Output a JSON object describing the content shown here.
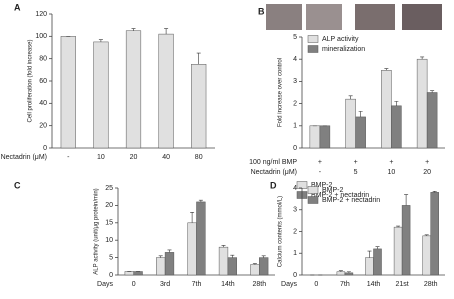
{
  "chart_data": [
    {
      "type": "bar",
      "label": "A",
      "ylabel": "Cell proliferation (fold increase)",
      "x_label": "Nectadrin (μM)",
      "categories": [
        "-",
        "10",
        "20",
        "40",
        "80"
      ],
      "series": [
        {
          "color": "#e0e0e0",
          "values": [
            100,
            95,
            105,
            102,
            75
          ],
          "errors": [
            0,
            2,
            2,
            5,
            10
          ]
        }
      ],
      "ylim": [
        0,
        120
      ],
      "yticks": [
        0,
        20,
        40,
        60,
        80,
        100,
        120
      ]
    },
    {
      "type": "bar",
      "label": "B",
      "ylabel": "Fold increase over control",
      "x_label": "Nectadrin (μM)",
      "treatment": {
        "label": "100 ng/ml BMP",
        "values": [
          "+",
          "+",
          "+",
          "+"
        ]
      },
      "categories": [
        "-",
        "5",
        "10",
        "20"
      ],
      "series": [
        {
          "name": "ALP activity",
          "color": "#e0e0e0",
          "values": [
            1,
            2.2,
            3.5,
            4.0
          ],
          "errors": [
            0,
            0.15,
            0.08,
            0.1
          ]
        },
        {
          "name": "mineralization",
          "color": "#808080",
          "values": [
            1,
            1.4,
            1.9,
            2.5
          ],
          "errors": [
            0,
            0.25,
            0.2,
            0.08
          ]
        }
      ],
      "ylim": [
        0,
        5
      ],
      "yticks": [
        0,
        1,
        2,
        3,
        4,
        5
      ],
      "legend": "upper left"
    },
    {
      "type": "bar",
      "label": "C",
      "ylabel": "ALP activity (unit/μg protein/min)",
      "x_label": "Days",
      "categories": [
        "0",
        "3rd",
        "7th",
        "14th",
        "28th"
      ],
      "series": [
        {
          "name": "BMP-2",
          "color": "#e0e0e0",
          "values": [
            1,
            5,
            15,
            8,
            3
          ],
          "errors": [
            0,
            0.5,
            3,
            0.5,
            0.3
          ]
        },
        {
          "name": "BMP-2 + nectadrin",
          "color": "#808080",
          "values": [
            1,
            6.5,
            21,
            5,
            5
          ],
          "errors": [
            0,
            0.7,
            0.5,
            0.7,
            0.5
          ]
        }
      ],
      "ylim": [
        0,
        25
      ],
      "yticks": [
        0,
        5,
        10,
        15,
        20,
        25
      ],
      "legend": "right"
    },
    {
      "type": "bar",
      "label": "D",
      "ylabel": "Calcium contents (mmol/L)",
      "x_label": "Days",
      "categories": [
        "0",
        "7th",
        "14th",
        "21st",
        "28th"
      ],
      "series": [
        {
          "name": "BMP-2",
          "color": "#e0e0e0",
          "values": [
            0,
            0.15,
            0.8,
            2.2,
            1.8
          ],
          "errors": [
            0,
            0.05,
            0.3,
            0.05,
            0.05
          ]
        },
        {
          "name": "BMP-2 + nectadrin",
          "color": "#808080",
          "values": [
            0,
            0.1,
            1.2,
            3.2,
            3.8
          ],
          "errors": [
            0,
            0.05,
            0.1,
            0.5,
            0.05
          ]
        }
      ],
      "ylim": [
        0,
        4
      ],
      "yticks": [
        0,
        1,
        2,
        3,
        4
      ],
      "legend": "upper left"
    }
  ]
}
